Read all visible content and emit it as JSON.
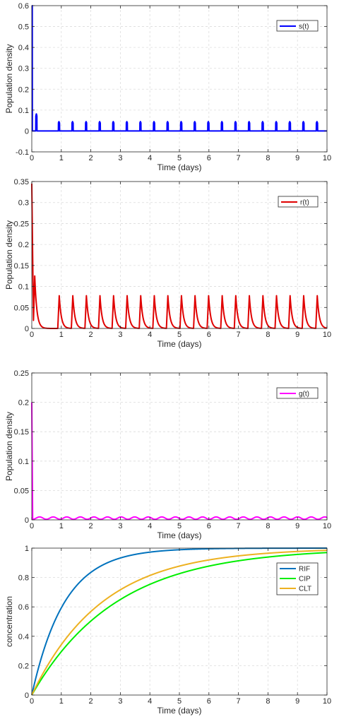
{
  "chart_data": [
    {
      "type": "line",
      "xlabel": "Time (days)",
      "ylabel": "Population density",
      "xlim": [
        0,
        10
      ],
      "ylim": [
        -0.1,
        0.6
      ],
      "xticks": [
        0,
        1,
        2,
        3,
        4,
        5,
        6,
        7,
        8,
        9,
        10
      ],
      "yticks": [
        -0.1,
        0,
        0.1,
        0.2,
        0.3,
        0.4,
        0.5,
        0.6
      ],
      "ytick_labels": [
        "-0.1",
        "0",
        "0.1",
        "0.2",
        "0.3",
        "0.4",
        "0.5",
        "0.6"
      ],
      "grid": true,
      "legend_position": "top-right",
      "series": [
        {
          "name": "s(t)",
          "color": "#0000ff",
          "initial_value": 0.6,
          "pulse_period_days": 0.46,
          "first_pulse_peak": 0.083,
          "pulse_peak": 0.045,
          "pulse_width_days": 0.04,
          "baseline": 0
        }
      ]
    },
    {
      "type": "line",
      "xlabel": "Time (days)",
      "ylabel": "Population density",
      "xlim": [
        0,
        10
      ],
      "ylim": [
        0,
        0.35
      ],
      "xticks": [
        0,
        1,
        2,
        3,
        4,
        5,
        6,
        7,
        8,
        9,
        10
      ],
      "yticks": [
        0,
        0.05,
        0.1,
        0.15,
        0.2,
        0.25,
        0.3,
        0.35
      ],
      "ytick_labels": [
        "0",
        "0.05",
        "0.1",
        "0.15",
        "0.2",
        "0.25",
        "0.3",
        "0.35"
      ],
      "grid": true,
      "legend_position": "top-right",
      "series": [
        {
          "name": "r(t)",
          "color": "#e00000",
          "initial_value": 0.345,
          "pulse_period_days": 0.46,
          "first_pulse_peak": 0.125,
          "pulse_peak": 0.078,
          "rise_days": 0.05,
          "decay_rate_per_day": 14,
          "baseline": 0
        }
      ]
    },
    {
      "type": "line",
      "xlabel": "Time (days)",
      "ylabel": "Population density",
      "xlim": [
        0,
        10
      ],
      "ylim": [
        0,
        0.25
      ],
      "xticks": [
        0,
        1,
        2,
        3,
        4,
        5,
        6,
        7,
        8,
        9,
        10
      ],
      "yticks": [
        0,
        0.05,
        0.1,
        0.15,
        0.2,
        0.25
      ],
      "ytick_labels": [
        "0",
        "0.05",
        "0.1",
        "0.15",
        "0.2",
        "0.25"
      ],
      "grid": true,
      "legend_position": "top-right",
      "series": [
        {
          "name": "g(t)",
          "color": "#ff00ff",
          "initial_value": 0.2,
          "pulse_period_days": 0.46,
          "oscillation_low": 0.001,
          "oscillation_high": 0.005
        }
      ]
    },
    {
      "type": "line",
      "xlabel": "Time (days)",
      "ylabel": "concentration",
      "xlim": [
        0,
        10
      ],
      "ylim": [
        0,
        1
      ],
      "xticks": [
        0,
        1,
        2,
        3,
        4,
        5,
        6,
        7,
        8,
        9,
        10
      ],
      "yticks": [
        0,
        0.2,
        0.4,
        0.6,
        0.8,
        1
      ],
      "ytick_labels": [
        "0",
        "0.2",
        "0.4",
        "0.6",
        "0.8",
        "1"
      ],
      "grid": true,
      "legend_position": "top-right",
      "series": [
        {
          "name": "RIF",
          "color": "#0072bd",
          "rate_per_day": 0.9
        },
        {
          "name": "CIP",
          "color": "#00ee00",
          "rate_per_day": 0.35
        },
        {
          "name": "CLT",
          "color": "#edb120",
          "rate_per_day": 0.42
        }
      ]
    }
  ]
}
